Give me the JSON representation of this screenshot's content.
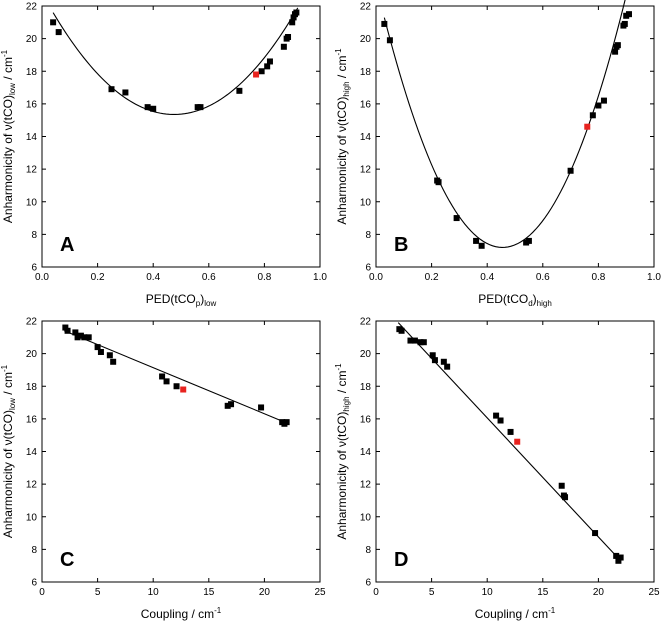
{
  "chart_data": [
    {
      "type": "scatter",
      "panel_label": "A",
      "xlabel": {
        "main": "PED(tCO",
        "sub": "p",
        "close": ")",
        "sub2": "low"
      },
      "ylabel": {
        "main": "Anharmonicity of ν(tCO)",
        "sub": "low",
        "unit": " / cm",
        "sup": "-1"
      },
      "xlim": [
        0,
        1
      ],
      "ylim": [
        6,
        22
      ],
      "xticks": [
        0.0,
        0.2,
        0.4,
        0.6,
        0.8,
        1.0
      ],
      "xtick_labels": [
        "0.0",
        "0.2",
        "0.4",
        "0.6",
        "0.8",
        "1.0"
      ],
      "yticks": [
        6,
        8,
        10,
        12,
        14,
        16,
        18,
        20,
        22
      ],
      "ytick_labels": [
        "6",
        "8",
        "10",
        "12",
        "14",
        "16",
        "18",
        "20",
        "22"
      ],
      "points": [
        {
          "x": 0.04,
          "y": 21.0
        },
        {
          "x": 0.06,
          "y": 20.4
        },
        {
          "x": 0.25,
          "y": 16.9
        },
        {
          "x": 0.3,
          "y": 16.7
        },
        {
          "x": 0.38,
          "y": 15.8
        },
        {
          "x": 0.4,
          "y": 15.7
        },
        {
          "x": 0.56,
          "y": 15.8
        },
        {
          "x": 0.57,
          "y": 15.8
        },
        {
          "x": 0.71,
          "y": 16.8
        },
        {
          "x": 0.79,
          "y": 18.0
        },
        {
          "x": 0.81,
          "y": 18.3
        },
        {
          "x": 0.82,
          "y": 18.6
        },
        {
          "x": 0.87,
          "y": 19.5
        },
        {
          "x": 0.88,
          "y": 20.0
        },
        {
          "x": 0.885,
          "y": 20.1
        },
        {
          "x": 0.9,
          "y": 21.0
        },
        {
          "x": 0.905,
          "y": 21.3
        },
        {
          "x": 0.91,
          "y": 21.5
        },
        {
          "x": 0.915,
          "y": 21.6
        }
      ],
      "highlight": [
        {
          "x": 0.77,
          "y": 17.8
        }
      ],
      "fit": {
        "kind": "quadratic",
        "vertex_x": 0.475,
        "vertex_y": 15.35,
        "curvature": 33.0,
        "x_range": [
          0.04,
          0.92
        ]
      },
      "colors": {
        "points": "#000000",
        "highlight": "#e8231f",
        "fit": "#000000"
      }
    },
    {
      "type": "scatter",
      "panel_label": "B",
      "xlabel": {
        "main": "PED(tCO",
        "sub": "d",
        "close": ")",
        "sub2": "high"
      },
      "ylabel": {
        "main": "Anharmonicity of ν(tCO)",
        "sub": "high",
        "unit": " / cm",
        "sup": "-1"
      },
      "xlim": [
        0,
        1
      ],
      "ylim": [
        6,
        22
      ],
      "xticks": [
        0.0,
        0.2,
        0.4,
        0.6,
        0.8,
        1.0
      ],
      "xtick_labels": [
        "0.0",
        "0.2",
        "0.4",
        "0.6",
        "0.8",
        "1.0"
      ],
      "yticks": [
        6,
        8,
        10,
        12,
        14,
        16,
        18,
        20,
        22
      ],
      "ytick_labels": [
        "6",
        "8",
        "10",
        "12",
        "14",
        "16",
        "18",
        "20",
        "22"
      ],
      "points": [
        {
          "x": 0.03,
          "y": 20.9
        },
        {
          "x": 0.05,
          "y": 19.9
        },
        {
          "x": 0.22,
          "y": 11.3
        },
        {
          "x": 0.225,
          "y": 11.2
        },
        {
          "x": 0.29,
          "y": 9.0
        },
        {
          "x": 0.36,
          "y": 7.6
        },
        {
          "x": 0.38,
          "y": 7.3
        },
        {
          "x": 0.54,
          "y": 7.5
        },
        {
          "x": 0.55,
          "y": 7.6
        },
        {
          "x": 0.7,
          "y": 11.9
        },
        {
          "x": 0.78,
          "y": 15.3
        },
        {
          "x": 0.8,
          "y": 15.9
        },
        {
          "x": 0.82,
          "y": 16.2
        },
        {
          "x": 0.86,
          "y": 19.2
        },
        {
          "x": 0.865,
          "y": 19.5
        },
        {
          "x": 0.87,
          "y": 19.6
        },
        {
          "x": 0.89,
          "y": 20.8
        },
        {
          "x": 0.895,
          "y": 20.9
        },
        {
          "x": 0.9,
          "y": 21.4
        },
        {
          "x": 0.91,
          "y": 21.5
        }
      ],
      "highlight": [
        {
          "x": 0.76,
          "y": 14.6
        }
      ],
      "fit": {
        "kind": "quadratic",
        "vertex_x": 0.455,
        "vertex_y": 7.2,
        "curvature": 78.0,
        "x_range": [
          0.03,
          0.92
        ]
      },
      "colors": {
        "points": "#000000",
        "highlight": "#e8231f",
        "fit": "#000000"
      }
    },
    {
      "type": "scatter",
      "panel_label": "C",
      "xlabel": {
        "main": "Coupling / cm",
        "sup": "-1"
      },
      "ylabel": {
        "main": "Anharmonicity of ν(tCO)",
        "sub": "low",
        "unit": " / cm",
        "sup": "-1"
      },
      "xlim": [
        0,
        25
      ],
      "ylim": [
        6,
        22
      ],
      "xticks": [
        0,
        5,
        10,
        15,
        20,
        25
      ],
      "xtick_labels": [
        "0",
        "5",
        "10",
        "15",
        "20",
        "25"
      ],
      "yticks": [
        6,
        8,
        10,
        12,
        14,
        16,
        18,
        20,
        22
      ],
      "ytick_labels": [
        "6",
        "8",
        "10",
        "12",
        "14",
        "16",
        "18",
        "20",
        "22"
      ],
      "points": [
        {
          "x": 2.1,
          "y": 21.6
        },
        {
          "x": 2.3,
          "y": 21.4
        },
        {
          "x": 3.0,
          "y": 21.3
        },
        {
          "x": 3.2,
          "y": 21.0
        },
        {
          "x": 3.5,
          "y": 21.1
        },
        {
          "x": 3.8,
          "y": 21.0
        },
        {
          "x": 4.2,
          "y": 21.0
        },
        {
          "x": 5.0,
          "y": 20.4
        },
        {
          "x": 5.3,
          "y": 20.1
        },
        {
          "x": 6.1,
          "y": 19.9
        },
        {
          "x": 6.4,
          "y": 19.5
        },
        {
          "x": 10.8,
          "y": 18.6
        },
        {
          "x": 11.2,
          "y": 18.3
        },
        {
          "x": 12.1,
          "y": 18.0
        },
        {
          "x": 16.7,
          "y": 16.8
        },
        {
          "x": 17.0,
          "y": 16.9
        },
        {
          "x": 19.7,
          "y": 16.7
        },
        {
          "x": 21.6,
          "y": 15.8
        },
        {
          "x": 21.8,
          "y": 15.7
        },
        {
          "x": 22.0,
          "y": 15.8
        }
      ],
      "highlight": [
        {
          "x": 12.7,
          "y": 17.8
        }
      ],
      "fit": {
        "kind": "linear",
        "x_range": [
          2.0,
          22.0
        ],
        "y_range": [
          21.4,
          15.75
        ]
      },
      "colors": {
        "points": "#000000",
        "highlight": "#e8231f",
        "fit": "#000000"
      }
    },
    {
      "type": "scatter",
      "panel_label": "D",
      "xlabel": {
        "main": "Coupling / cm",
        "sup": "-1"
      },
      "ylabel": {
        "main": "Anharmonicity of ν(tCO)",
        "sub": "high",
        "unit": " / cm",
        "sup": "-1"
      },
      "xlim": [
        0,
        25
      ],
      "ylim": [
        6,
        22
      ],
      "xticks": [
        0,
        5,
        10,
        15,
        20,
        25
      ],
      "xtick_labels": [
        "0",
        "5",
        "10",
        "15",
        "20",
        "25"
      ],
      "yticks": [
        6,
        8,
        10,
        12,
        14,
        16,
        18,
        20,
        22
      ],
      "ytick_labels": [
        "6",
        "8",
        "10",
        "12",
        "14",
        "16",
        "18",
        "20",
        "22"
      ],
      "points": [
        {
          "x": 2.1,
          "y": 21.5
        },
        {
          "x": 2.3,
          "y": 21.4
        },
        {
          "x": 3.1,
          "y": 20.8
        },
        {
          "x": 3.5,
          "y": 20.8
        },
        {
          "x": 4.0,
          "y": 20.7
        },
        {
          "x": 4.3,
          "y": 20.7
        },
        {
          "x": 5.1,
          "y": 19.9
        },
        {
          "x": 5.3,
          "y": 19.6
        },
        {
          "x": 6.1,
          "y": 19.5
        },
        {
          "x": 6.4,
          "y": 19.2
        },
        {
          "x": 10.8,
          "y": 16.2
        },
        {
          "x": 11.2,
          "y": 15.9
        },
        {
          "x": 12.1,
          "y": 15.2
        },
        {
          "x": 16.7,
          "y": 11.9
        },
        {
          "x": 16.9,
          "y": 11.3
        },
        {
          "x": 17.0,
          "y": 11.2
        },
        {
          "x": 19.7,
          "y": 9.0
        },
        {
          "x": 21.6,
          "y": 7.6
        },
        {
          "x": 21.8,
          "y": 7.3
        },
        {
          "x": 22.0,
          "y": 7.5
        }
      ],
      "highlight": [
        {
          "x": 12.7,
          "y": 14.6
        }
      ],
      "fit": {
        "kind": "linear",
        "x_range": [
          2.0,
          22.0
        ],
        "y_range": [
          21.9,
          7.3
        ]
      },
      "colors": {
        "points": "#000000",
        "highlight": "#e8231f",
        "fit": "#000000"
      }
    }
  ]
}
